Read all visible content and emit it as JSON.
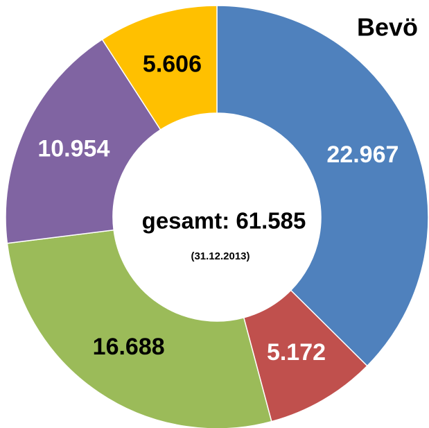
{
  "chart_data": {
    "type": "donut",
    "title": "Bevö",
    "annotations": [
      "gesamt: 61.585",
      "(31.12.2013)"
    ],
    "values": [
      22967,
      5172,
      16688,
      10954,
      5606
    ],
    "value_labels": [
      "22.967",
      "5.172",
      "16.688",
      "10.954",
      "5.606"
    ],
    "colors": [
      "#4f81bd",
      "#c0504d",
      "#9bbb59",
      "#8064a2",
      "#ffc000"
    ],
    "label_colors": [
      "#ffffff",
      "#ffffff",
      "#000000",
      "#ffffff",
      "#000000"
    ]
  }
}
